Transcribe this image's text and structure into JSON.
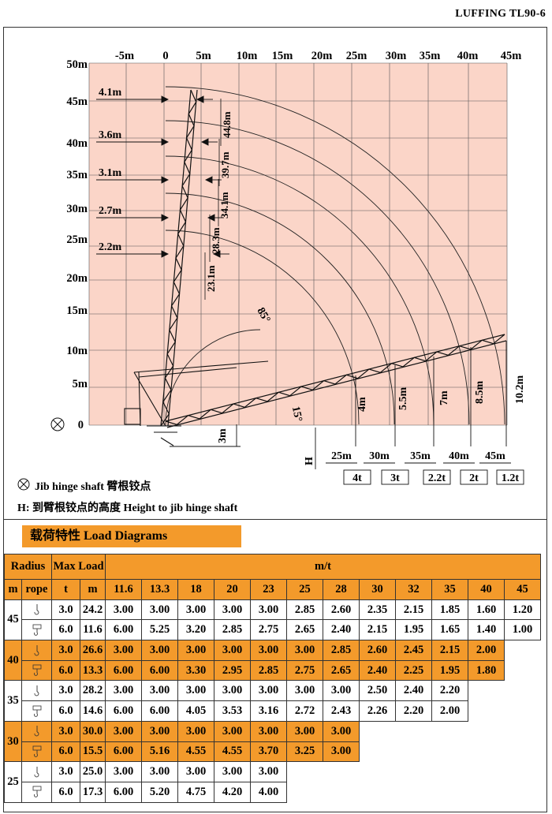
{
  "model_title": "LUFFING TL90-6",
  "diagram": {
    "x_ticks": [
      "-5m",
      "0",
      "5m",
      "10m",
      "15m",
      "20m",
      "25m",
      "30m",
      "35m",
      "40m",
      "45m"
    ],
    "y_ticks": [
      "50m",
      "45m",
      "40m",
      "35m",
      "30m",
      "25m",
      "20m",
      "15m",
      "10m",
      "5m",
      "0"
    ],
    "offsets": [
      "4.1m",
      "3.6m",
      "3.1m",
      "2.7m",
      "2.2m"
    ],
    "heights": [
      "44.8m",
      "39.7m",
      "34.1m",
      "28.3m",
      "23.1m"
    ],
    "angle_top": "85°",
    "angle_bottom": "15°",
    "base_height": "3m",
    "h_label": "H",
    "tip_heights": [
      "4m",
      "5.5m",
      "7m",
      "8.5m",
      "10.2m"
    ],
    "radii": [
      "25m",
      "30m",
      "35m",
      "40m",
      "45m"
    ],
    "tip_loads": [
      "4t",
      "3t",
      "2.2t",
      "2t",
      "1.2t"
    ]
  },
  "legend": {
    "jib_hinge": "Jib hinge shaft  臂根铰点",
    "height_note": "H: 到臂根铰点的高度 Height to jib hinge shaft"
  },
  "load_section": {
    "title": "载荷特性  Load Diagrams"
  },
  "table": {
    "head1": {
      "radius": "Radius",
      "max_load": "Max Load",
      "mt": "m/t"
    },
    "head2": {
      "m": "m",
      "rope": "rope",
      "t": "t",
      "m2": "m"
    },
    "radii_cols": [
      "11.6",
      "13.3",
      "18",
      "20",
      "23",
      "25",
      "28",
      "30",
      "32",
      "35",
      "40",
      "45"
    ],
    "groups": [
      {
        "boom": "45",
        "orange": false,
        "rows": [
          {
            "t": "3.0",
            "m": "24.2",
            "vals": [
              "3.00",
              "3.00",
              "3.00",
              "3.00",
              "3.00",
              "2.85",
              "2.60",
              "2.35",
              "2.15",
              "1.85",
              "1.60",
              "1.20"
            ]
          },
          {
            "t": "6.0",
            "m": "11.6",
            "vals": [
              "6.00",
              "5.25",
              "3.20",
              "2.85",
              "2.75",
              "2.65",
              "2.40",
              "2.15",
              "1.95",
              "1.65",
              "1.40",
              "1.00"
            ]
          }
        ]
      },
      {
        "boom": "40",
        "orange": true,
        "rows": [
          {
            "t": "3.0",
            "m": "26.6",
            "vals": [
              "3.00",
              "3.00",
              "3.00",
              "3.00",
              "3.00",
              "3.00",
              "2.85",
              "2.60",
              "2.45",
              "2.15",
              "2.00"
            ]
          },
          {
            "t": "6.0",
            "m": "13.3",
            "vals": [
              "6.00",
              "6.00",
              "3.30",
              "2.95",
              "2.85",
              "2.75",
              "2.65",
              "2.40",
              "2.25",
              "1.95",
              "1.80"
            ]
          }
        ]
      },
      {
        "boom": "35",
        "orange": false,
        "rows": [
          {
            "t": "3.0",
            "m": "28.2",
            "vals": [
              "3.00",
              "3.00",
              "3.00",
              "3.00",
              "3.00",
              "3.00",
              "3.00",
              "2.50",
              "2.40",
              "2.20"
            ]
          },
          {
            "t": "6.0",
            "m": "14.6",
            "vals": [
              "6.00",
              "6.00",
              "4.05",
              "3.53",
              "3.16",
              "2.72",
              "2.43",
              "2.26",
              "2.20",
              "2.00"
            ]
          }
        ]
      },
      {
        "boom": "30",
        "orange": true,
        "rows": [
          {
            "t": "3.0",
            "m": "30.0",
            "vals": [
              "3.00",
              "3.00",
              "3.00",
              "3.00",
              "3.00",
              "3.00",
              "3.00"
            ]
          },
          {
            "t": "6.0",
            "m": "15.5",
            "vals": [
              "6.00",
              "5.16",
              "4.55",
              "4.55",
              "3.70",
              "3.25",
              "3.00"
            ]
          }
        ]
      },
      {
        "boom": "25",
        "orange": false,
        "rows": [
          {
            "t": "3.0",
            "m": "25.0",
            "vals": [
              "3.00",
              "3.00",
              "3.00",
              "3.00",
              "3.00"
            ]
          },
          {
            "t": "6.0",
            "m": "17.3",
            "vals": [
              "6.00",
              "5.20",
              "4.75",
              "4.20",
              "4.00"
            ]
          }
        ]
      }
    ]
  },
  "colors": {
    "grid_fill": "#fbd5c8",
    "accent": "#f39a2b"
  }
}
